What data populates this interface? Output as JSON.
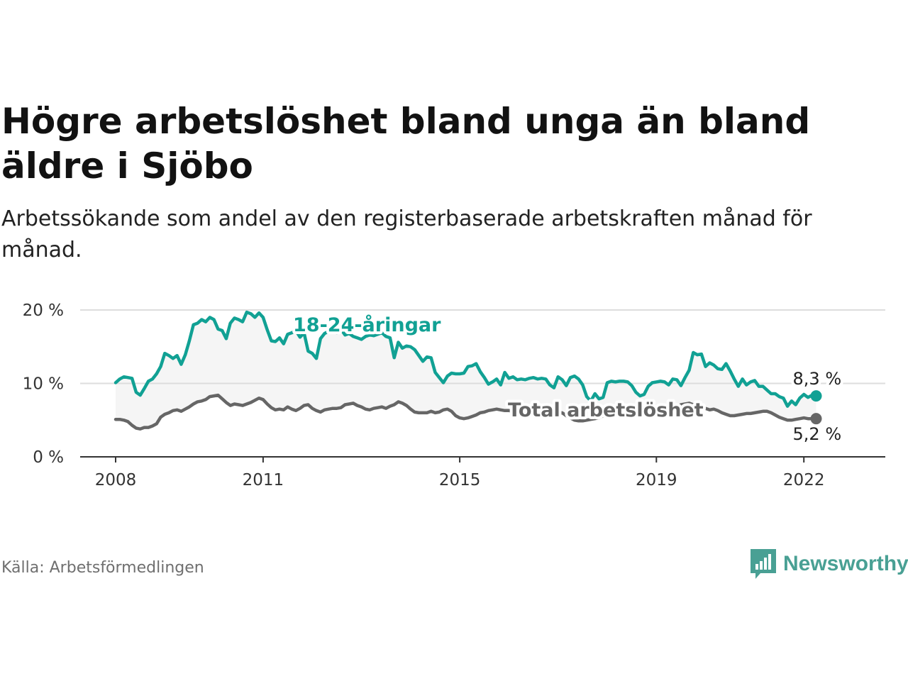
{
  "header": {
    "title": "Högre arbetslöshet bland unga än bland äldre i Sjöbo",
    "subtitle": "Arbetssökande som andel av den registerbaserade arbetskraften månad för månad."
  },
  "footer": {
    "source": "Källa: Arbetsförmedlingen",
    "brand": "Newsworthy"
  },
  "colors": {
    "youth": "#11a194",
    "total": "#666666",
    "band": "#f5f5f5",
    "grid": "#dddddd",
    "axis": "#333333"
  },
  "chart_data": {
    "type": "line",
    "title": "Högre arbetslöshet bland unga än bland äldre i Sjöbo",
    "ylabel": "",
    "xlabel": "",
    "x_start": 2008.0,
    "x_step_months": 1,
    "xlim": [
      2007.5,
      2023.2
    ],
    "ylim": [
      0,
      20
    ],
    "grid": true,
    "y_ticks": [
      {
        "value": 0,
        "label": "0 %"
      },
      {
        "value": 10,
        "label": "10 %"
      },
      {
        "value": 20,
        "label": "20 %"
      }
    ],
    "x_ticks": [
      {
        "value": 2008,
        "label": "2008"
      },
      {
        "value": 2011,
        "label": "2011"
      },
      {
        "value": 2015,
        "label": "2015"
      },
      {
        "value": 2019,
        "label": "2019"
      },
      {
        "value": 2022,
        "label": "2022"
      }
    ],
    "series": [
      {
        "name": "18-24-åringar",
        "key": "youth",
        "last_label": "8,3 %",
        "values": [
          10.1,
          10.6,
          10.9,
          10.8,
          10.7,
          8.8,
          8.4,
          9.3,
          10.3,
          10.6,
          11.3,
          12.3,
          14.1,
          13.8,
          13.4,
          13.8,
          12.6,
          13.9,
          15.8,
          18.0,
          18.2,
          18.7,
          18.4,
          19.0,
          18.7,
          17.4,
          17.2,
          16.1,
          18.2,
          18.9,
          18.7,
          18.4,
          19.7,
          19.5,
          19.0,
          19.6,
          19.0,
          17.3,
          15.8,
          15.7,
          16.2,
          15.4,
          16.7,
          16.9,
          17.2,
          16.3,
          16.9,
          14.4,
          14.1,
          13.4,
          16.1,
          16.8,
          17.1,
          17.2,
          16.9,
          17.4,
          16.6,
          16.8,
          16.4,
          16.2,
          16.0,
          16.4,
          16.6,
          16.5,
          16.7,
          16.9,
          16.4,
          16.2,
          13.5,
          15.6,
          14.8,
          15.1,
          15.0,
          14.6,
          13.8,
          13.0,
          13.6,
          13.5,
          11.5,
          10.8,
          10.1,
          11.0,
          11.4,
          11.3,
          11.3,
          11.4,
          12.3,
          12.4,
          12.7,
          11.6,
          10.8,
          9.9,
          10.2,
          10.6,
          9.8,
          11.5,
          10.7,
          10.9,
          10.5,
          10.6,
          10.5,
          10.7,
          10.8,
          10.6,
          10.7,
          10.6,
          9.8,
          9.4,
          10.9,
          10.5,
          9.7,
          10.8,
          11.0,
          10.6,
          9.8,
          8.2,
          7.6,
          8.6,
          7.9,
          8.1,
          10.1,
          10.3,
          10.2,
          10.3,
          10.3,
          10.2,
          9.7,
          8.8,
          8.3,
          8.5,
          9.6,
          10.1,
          10.2,
          10.3,
          10.2,
          9.8,
          10.6,
          10.5,
          9.7,
          10.8,
          11.8,
          14.2,
          13.9,
          14.0,
          12.3,
          12.8,
          12.5,
          12.0,
          11.9,
          12.7,
          11.7,
          10.6,
          9.6,
          10.6,
          9.8,
          10.2,
          10.4,
          9.6,
          9.6,
          9.1,
          8.6,
          8.6,
          8.2,
          8.0,
          6.9,
          7.6,
          7.1,
          8.0,
          8.5,
          8.1,
          8.4,
          8.3
        ]
      },
      {
        "name": "Total arbetslöshet",
        "key": "total",
        "last_label": "5,2 %",
        "values": [
          5.1,
          5.1,
          5.0,
          4.8,
          4.3,
          3.9,
          3.8,
          4.0,
          4.0,
          4.2,
          4.5,
          5.4,
          5.8,
          6.0,
          6.3,
          6.4,
          6.2,
          6.5,
          6.8,
          7.2,
          7.5,
          7.6,
          7.8,
          8.2,
          8.3,
          8.4,
          7.9,
          7.4,
          7.0,
          7.2,
          7.1,
          7.0,
          7.2,
          7.4,
          7.7,
          8.0,
          7.8,
          7.2,
          6.7,
          6.4,
          6.5,
          6.4,
          6.8,
          6.5,
          6.3,
          6.6,
          7.0,
          7.1,
          6.6,
          6.3,
          6.1,
          6.4,
          6.5,
          6.6,
          6.6,
          6.7,
          7.1,
          7.2,
          7.3,
          7.0,
          6.8,
          6.5,
          6.4,
          6.6,
          6.7,
          6.8,
          6.6,
          6.9,
          7.1,
          7.5,
          7.3,
          7.0,
          6.5,
          6.1,
          6.0,
          6.0,
          6.0,
          6.2,
          6.0,
          6.1,
          6.4,
          6.5,
          6.2,
          5.6,
          5.3,
          5.2,
          5.3,
          5.5,
          5.7,
          6.0,
          6.1,
          6.3,
          6.4,
          6.5,
          6.4,
          6.3,
          6.3,
          6.2,
          6.1,
          6.3,
          6.4,
          6.2,
          6.2,
          6.0,
          6.1,
          5.9,
          5.8,
          5.7,
          5.9,
          6.0,
          5.6,
          5.3,
          5.0,
          4.9,
          4.9,
          5.0,
          5.1,
          5.2,
          5.3,
          5.6,
          5.8,
          6.0,
          6.1,
          6.2,
          6.3,
          6.5,
          6.6,
          6.7,
          6.8,
          6.8,
          6.7,
          6.6,
          6.4,
          6.2,
          6.2,
          6.4,
          6.6,
          6.8,
          7.1,
          7.2,
          7.3,
          7.1,
          6.9,
          6.7,
          6.6,
          6.4,
          6.5,
          6.3,
          6.0,
          5.8,
          5.6,
          5.6,
          5.7,
          5.8,
          5.9,
          5.9,
          6.0,
          6.1,
          6.2,
          6.2,
          6.0,
          5.7,
          5.4,
          5.2,
          5.0,
          5.0,
          5.1,
          5.2,
          5.3,
          5.2,
          5.2,
          5.2
        ]
      }
    ]
  }
}
